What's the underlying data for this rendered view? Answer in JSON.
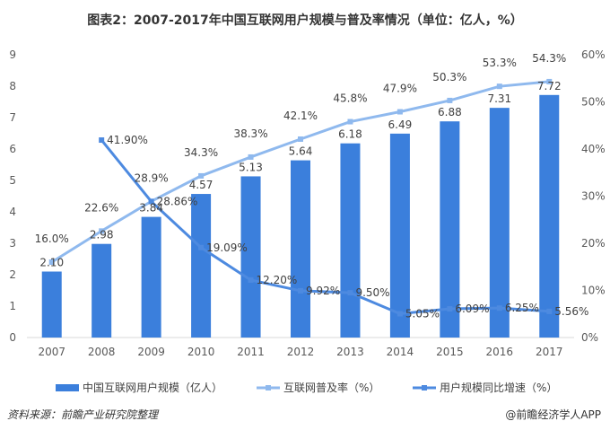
{
  "title": "图表2：2007-2017年中国互联网用户规模与普及率情况（单位：亿人，%）",
  "source": "资料来源：前瞻产业研究院整理",
  "credit": "@前瞻经济学人APP",
  "watermark": "前瞻产业研究院",
  "colors": {
    "bars": "#3b7fdc",
    "penetration": "#8fb9ee",
    "growth": "#4d8ae0"
  },
  "chart_data": {
    "type": "bar+line",
    "categories": [
      "2007",
      "2008",
      "2009",
      "2010",
      "2011",
      "2012",
      "2013",
      "2014",
      "2015",
      "2016",
      "2017"
    ],
    "ylim_left": [
      0,
      9
    ],
    "yticks_left": [
      "0",
      "1",
      "2",
      "3",
      "4",
      "5",
      "6",
      "7",
      "8",
      "9"
    ],
    "ylim_right": [
      0,
      60
    ],
    "yticks_right": [
      "0%",
      "10%",
      "20%",
      "30%",
      "40%",
      "50%",
      "60%"
    ],
    "grid": false,
    "legend_placement": "bottom",
    "series": [
      {
        "name": "中国互联网用户规模（亿人）",
        "type": "bar",
        "axis": "left",
        "values": [
          2.1,
          2.98,
          3.84,
          4.57,
          5.13,
          5.64,
          6.18,
          6.49,
          6.88,
          7.31,
          7.72
        ],
        "labels": [
          "2.10",
          "2.98",
          "3.84",
          "4.57",
          "5.13",
          "5.64",
          "6.18",
          "6.49",
          "6.88",
          "7.31",
          "7.72"
        ]
      },
      {
        "name": "互联网普及率（%）",
        "type": "line",
        "axis": "right",
        "values": [
          16.0,
          22.6,
          28.9,
          34.3,
          38.3,
          42.1,
          45.8,
          47.9,
          50.3,
          53.3,
          54.3
        ],
        "labels": [
          "16.0%",
          "22.6%",
          "28.9%",
          "34.3%",
          "38.3%",
          "42.1%",
          "45.8%",
          "47.9%",
          "50.3%",
          "53.3%",
          "54.3%"
        ]
      },
      {
        "name": "用户规模同比增速（%）",
        "type": "line",
        "axis": "right",
        "values": [
          null,
          41.9,
          28.86,
          19.09,
          12.2,
          9.92,
          9.5,
          5.05,
          6.09,
          6.25,
          5.56
        ],
        "labels": [
          null,
          "41.90%",
          "28.86%",
          "19.09%",
          "12.20%",
          "9.92%",
          "9.50%",
          "5.05%",
          "6.09%",
          "6.25%",
          "5.56%"
        ]
      }
    ]
  }
}
